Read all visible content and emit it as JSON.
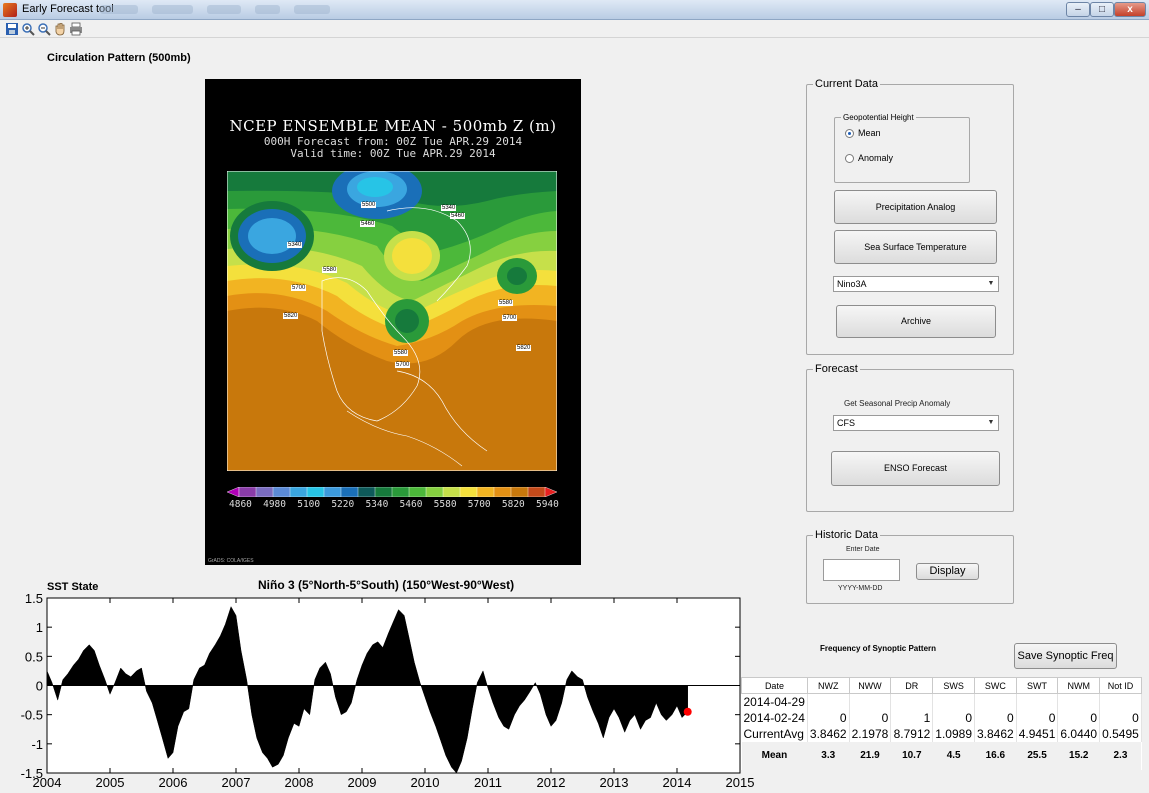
{
  "window": {
    "title": "Early Forecast tool",
    "controls": {
      "minimize": "–",
      "maximize": "□",
      "close": "x"
    }
  },
  "toolbar": {
    "icons": [
      "save-icon",
      "zoom-in-icon",
      "zoom-out-icon",
      "pan-hand-icon",
      "print-icon"
    ]
  },
  "circulation": {
    "label": "Circulation Pattern (500mb)"
  },
  "map": {
    "title": "NCEP ENSEMBLE MEAN - 500mb Z (m)",
    "subtitle1": "000H Forecast from: 00Z Tue APR.29 2014",
    "subtitle2": "Valid time: 00Z Tue APR.29 2014",
    "contour_labels": [
      "5340",
      "5460",
      "5580",
      "5700",
      "5820",
      "5500",
      "5460",
      "5340",
      "5580",
      "5700",
      "5820",
      "5580",
      "5700"
    ],
    "colorbar_labels": [
      "4860",
      "4980",
      "5100",
      "5220",
      "5340",
      "5460",
      "5580",
      "5700",
      "5820",
      "5940"
    ],
    "colorbar_colors": [
      "#b000b8",
      "#8a3ca8",
      "#7a6cc0",
      "#5b8ad6",
      "#3aa6e0",
      "#27c4e6",
      "#3c9adc",
      "#1a6fb8",
      "#0e5a5a",
      "#167a3c",
      "#2a9a3a",
      "#4cb83a",
      "#86d040",
      "#c6e04a",
      "#f4e03c",
      "#f2b422",
      "#e39014",
      "#c8780c",
      "#c44a1a",
      "#e62020"
    ],
    "credit": "GrADS: COLA/IGES"
  },
  "current_data": {
    "legend": "Current Data",
    "geo_height": {
      "legend": "Geopotential Height",
      "options": [
        "Mean",
        "Anomaly"
      ],
      "selected": "Mean"
    },
    "precip_button": "Precipitation Analog",
    "sst_button": "Sea Surface Temperature",
    "nino_select": "Nino3A",
    "archive_button": "Archive"
  },
  "forecast": {
    "legend": "Forecast",
    "label": "Get Seasonal Precip Anomaly",
    "model_select": "CFS",
    "enso_button": "ENSO Forecast"
  },
  "historic": {
    "legend": "Historic Data",
    "enter_label": "Enter Date",
    "date_value": "",
    "format_hint": "YYYY-MM-DD",
    "display_button": "Display"
  },
  "sst": {
    "section_label": "SST State",
    "title": "Niño 3 (5°North-5°South) (150°West-90°West)"
  },
  "chart_data": {
    "type": "area",
    "title": "Niño 3 (5°North-5°South) (150°West-90°West)",
    "xlabel": "",
    "ylabel": "",
    "xlim": [
      2004,
      2015
    ],
    "ylim": [
      -1.5,
      1.5
    ],
    "xticks": [
      "2004",
      "2005",
      "2006",
      "2007",
      "2008",
      "2009",
      "2010",
      "2011",
      "2012",
      "2013",
      "2014",
      "2015"
    ],
    "yticks": [
      "1.5",
      "1",
      "0.5",
      "0",
      "-0.5",
      "-1",
      "-1.5"
    ],
    "grid": false,
    "series": [
      {
        "x": [
          2004.0,
          2004.08,
          2004.17,
          2004.25,
          2004.33,
          2004.42,
          2004.5,
          2004.58,
          2004.67,
          2004.75,
          2004.83,
          2004.92,
          2005.0,
          2005.08,
          2005.17,
          2005.25,
          2005.33,
          2005.42,
          2005.5,
          2005.58,
          2005.67,
          2005.75,
          2005.83,
          2005.92,
          2006.0,
          2006.08,
          2006.17,
          2006.25,
          2006.33,
          2006.42,
          2006.5,
          2006.58,
          2006.67,
          2006.75,
          2006.83,
          2006.92,
          2007.0,
          2007.08,
          2007.17,
          2007.25,
          2007.33,
          2007.42,
          2007.5,
          2007.58,
          2007.67,
          2007.75,
          2007.83,
          2007.92,
          2008.0,
          2008.08,
          2008.17,
          2008.25,
          2008.33,
          2008.42,
          2008.5,
          2008.58,
          2008.67,
          2008.75,
          2008.83,
          2008.92,
          2009.0,
          2009.08,
          2009.17,
          2009.25,
          2009.33,
          2009.42,
          2009.5,
          2009.58,
          2009.67,
          2009.75,
          2009.83,
          2009.92,
          2010.0,
          2010.08,
          2010.17,
          2010.25,
          2010.33,
          2010.42,
          2010.5,
          2010.58,
          2010.67,
          2010.75,
          2010.83,
          2010.92,
          2011.0,
          2011.08,
          2011.17,
          2011.25,
          2011.33,
          2011.42,
          2011.5,
          2011.58,
          2011.67,
          2011.75,
          2011.83,
          2011.92,
          2012.0,
          2012.08,
          2012.17,
          2012.25,
          2012.33,
          2012.42,
          2012.5,
          2012.58,
          2012.67,
          2012.75,
          2012.83,
          2012.92,
          2013.0,
          2013.08,
          2013.17,
          2013.25,
          2013.33,
          2013.42,
          2013.5,
          2013.58,
          2013.67,
          2013.75,
          2013.83,
          2013.92,
          2014.0,
          2014.08,
          2014.17
        ],
        "y": [
          0.25,
          0.05,
          -0.25,
          0.1,
          0.2,
          0.35,
          0.45,
          0.6,
          0.7,
          0.6,
          0.35,
          0.1,
          -0.15,
          0.05,
          0.3,
          0.2,
          0.15,
          0.25,
          0.3,
          -0.1,
          -0.3,
          -0.6,
          -0.9,
          -1.25,
          -1.15,
          -0.7,
          -0.45,
          -0.4,
          0.1,
          0.3,
          0.35,
          0.55,
          0.7,
          0.85,
          1.05,
          1.35,
          1.2,
          0.6,
          0.1,
          -0.5,
          -0.9,
          -1.15,
          -1.25,
          -1.4,
          -1.35,
          -1.2,
          -0.9,
          -0.65,
          -0.7,
          -0.4,
          -0.5,
          0.1,
          0.3,
          0.4,
          0.2,
          -0.2,
          -0.5,
          -0.45,
          -0.3,
          0.1,
          0.35,
          0.55,
          0.7,
          0.75,
          0.65,
          0.9,
          1.1,
          1.3,
          1.2,
          0.8,
          0.4,
          0.05,
          -0.2,
          -0.45,
          -0.7,
          -0.95,
          -1.2,
          -1.4,
          -1.5,
          -1.3,
          -0.9,
          -0.4,
          0.05,
          0.25,
          -0.05,
          -0.3,
          -0.55,
          -0.7,
          -0.75,
          -0.5,
          -0.35,
          -0.25,
          -0.1,
          0.05,
          -0.15,
          -0.5,
          -0.7,
          -0.6,
          -0.3,
          0.1,
          0.25,
          0.15,
          0.1,
          -0.2,
          -0.45,
          -0.65,
          -0.9,
          -0.55,
          -0.4,
          -0.55,
          -0.8,
          -0.6,
          -0.5,
          -0.75,
          -0.6,
          -0.55,
          -0.3,
          -0.5,
          -0.6,
          -0.5,
          -0.35,
          -0.55,
          -0.45
        ]
      }
    ],
    "current_point": {
      "x": 2014.17,
      "y": -0.45,
      "color": "#ff0000"
    }
  },
  "synoptic": {
    "label": "Frequency of Synoptic Pattern",
    "save_button": "Save Synoptic Freq",
    "columns": [
      "Date",
      "NWZ",
      "NWW",
      "DR",
      "SWS",
      "SWC",
      "SWT",
      "NWM",
      "Not ID"
    ],
    "rows": [
      [
        "2014-04-29",
        "",
        "",
        "",
        "",
        "",
        "",
        "",
        ""
      ],
      [
        "2014-02-24",
        "0",
        "0",
        "1",
        "0",
        "0",
        "0",
        "0",
        "0"
      ],
      [
        "CurrentAvg",
        "3.8462",
        "2.1978",
        "8.7912",
        "1.0989",
        "3.8462",
        "4.9451",
        "6.0440",
        "0.5495"
      ]
    ],
    "mean_row": [
      "Mean",
      "3.3",
      "21.9",
      "10.7",
      "4.5",
      "16.6",
      "25.5",
      "15.2",
      "2.3"
    ]
  }
}
